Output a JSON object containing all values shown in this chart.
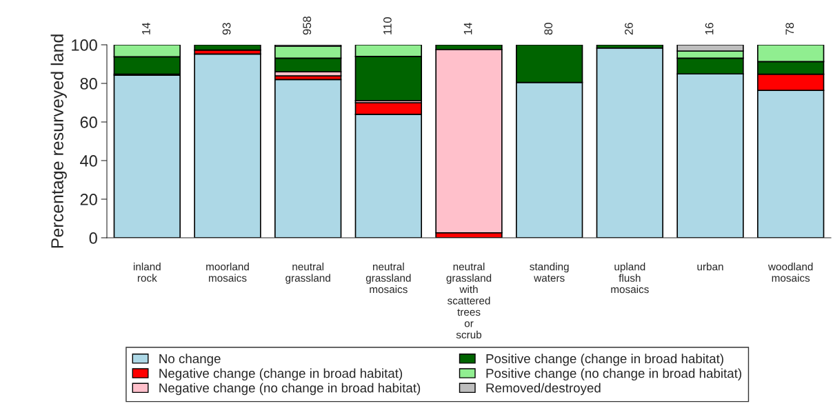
{
  "chart_data": {
    "type": "bar",
    "stacked": true,
    "ylabel": "Percentage resurveyed land",
    "categories": [
      "inland\nrock",
      "moorland\nmosaics",
      "neutral\ngrassland",
      "neutral\ngrassland\nmosaics",
      "neutral\ngrassland\nwith\nscattered\ntrees\nor\nscrub",
      "standing\nwaters",
      "upland\nflush\nmosaics",
      "urban",
      "woodland\nmosaics"
    ],
    "series": [
      {
        "name": "No change",
        "color": "#add8e6",
        "values": [
          84.2,
          95.2,
          82.0,
          64.0,
          null,
          80.5,
          98.3,
          84.9,
          76.4
        ]
      },
      {
        "name": "Negative change (change in broad habitat)",
        "color": "#ff0000",
        "values": [
          0.6,
          2.1,
          1.9,
          6.0,
          2.6,
          null,
          null,
          null,
          8.4
        ]
      },
      {
        "name": "Negative change (no change in broad habitat)",
        "color": "#ffc0cb",
        "values": [
          null,
          null,
          2.1,
          1.0,
          95.0,
          null,
          null,
          null,
          null
        ]
      },
      {
        "name": "Positive change (change in broad habitat)",
        "color": "#006400",
        "values": [
          9.0,
          2.7,
          7.1,
          23.0,
          2.4,
          19.5,
          1.7,
          8.2,
          6.5
        ]
      },
      {
        "name": "Positive change (no change in broad habitat)",
        "color": "#90ee90",
        "values": [
          6.2,
          null,
          6.2,
          6.0,
          null,
          null,
          null,
          3.7,
          8.7
        ]
      },
      {
        "name": "Removed/destroyed",
        "color": "#bebebe",
        "values": [
          null,
          null,
          0.7,
          null,
          null,
          null,
          null,
          3.2,
          null
        ]
      }
    ],
    "annotations": [
      "14",
      "93",
      "958",
      "110",
      "14",
      "80",
      "26",
      "16",
      "78"
    ],
    "ylim": [
      0,
      100
    ],
    "yticks": [
      0,
      20,
      40,
      60,
      80,
      100
    ],
    "grid": false,
    "legend": "bottom"
  }
}
